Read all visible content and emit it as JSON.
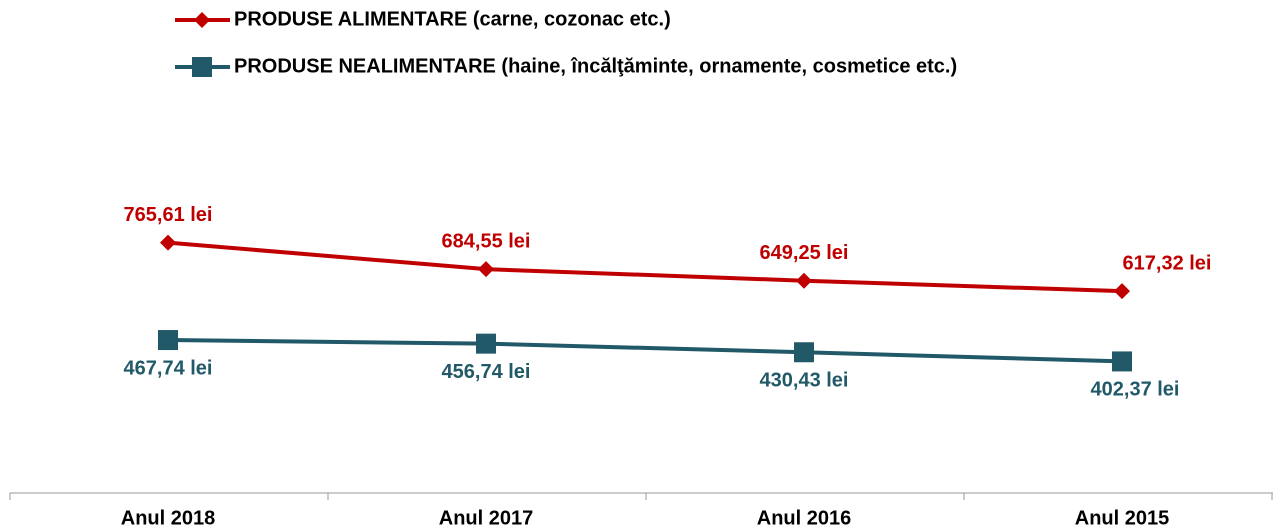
{
  "chart_data": {
    "type": "line",
    "categories": [
      "Anul 2018",
      "Anul 2017",
      "Anul 2016",
      "Anul 2015"
    ],
    "series": [
      {
        "name": "PRODUSE ALIMENTARE (carne, cozonac etc.)",
        "color": "#c00000",
        "marker": "diamond",
        "values": [
          765.61,
          684.55,
          649.25,
          617.32
        ],
        "value_labels": [
          "765,61 lei",
          "684,55 lei",
          "649,25 lei",
          "617,32 lei"
        ]
      },
      {
        "name": "PRODUSE NEALIMENTARE (haine, încălţăminte, ornamente, cosmetice etc.)",
        "color": "#215968",
        "marker": "square",
        "values": [
          467.74,
          456.74,
          430.43,
          402.37
        ],
        "value_labels": [
          "467,74 lei",
          "456,74 lei",
          "430,43 lei",
          "402,37 lei"
        ]
      }
    ],
    "ylim": [
      0,
      1000
    ]
  }
}
